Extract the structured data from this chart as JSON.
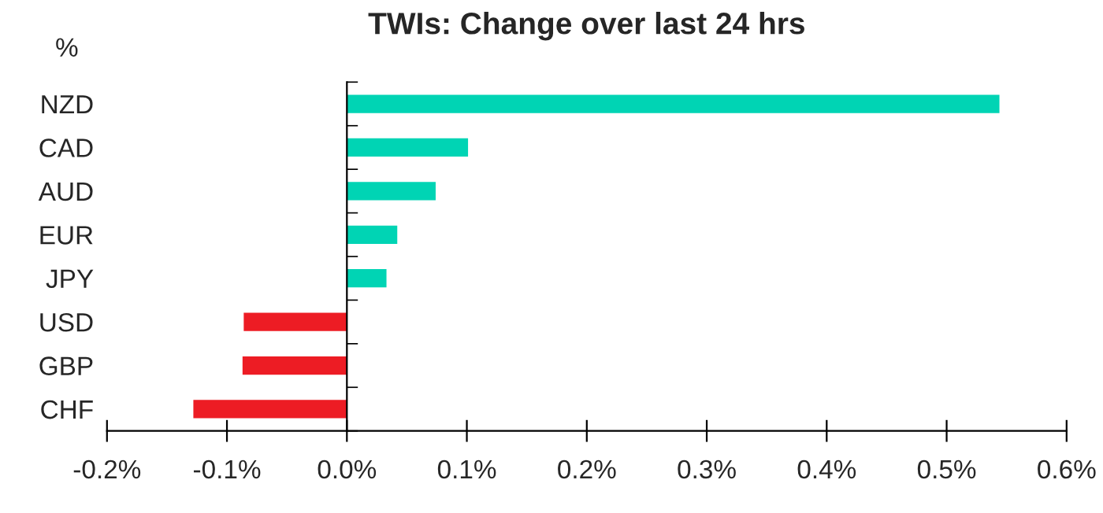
{
  "chart_data": {
    "type": "bar",
    "orientation": "horizontal",
    "title": "TWIs: Change over last 24 hrs",
    "ylabel": "%",
    "categories": [
      "NZD",
      "CAD",
      "AUD",
      "EUR",
      "JPY",
      "USD",
      "GBP",
      "CHF"
    ],
    "values": [
      0.544,
      0.101,
      0.074,
      0.042,
      0.033,
      -0.086,
      -0.087,
      -0.128
    ],
    "colors": [
      "#00d4b4",
      "#00d4b4",
      "#00d4b4",
      "#00d4b4",
      "#00d4b4",
      "#ed1c24",
      "#ed1c24",
      "#ed1c24"
    ],
    "xlim": [
      -0.2,
      0.6
    ],
    "xticks": [
      {
        "value": -0.2,
        "label": "-0.2%"
      },
      {
        "value": -0.1,
        "label": "-0.1%"
      },
      {
        "value": 0.0,
        "label": "0.0%"
      },
      {
        "value": 0.1,
        "label": "0.1%"
      },
      {
        "value": 0.2,
        "label": "0.2%"
      },
      {
        "value": 0.3,
        "label": "0.3%"
      },
      {
        "value": 0.4,
        "label": "0.4%"
      },
      {
        "value": 0.5,
        "label": "0.5%"
      },
      {
        "value": 0.6,
        "label": "0.6%"
      }
    ],
    "legend": false
  }
}
